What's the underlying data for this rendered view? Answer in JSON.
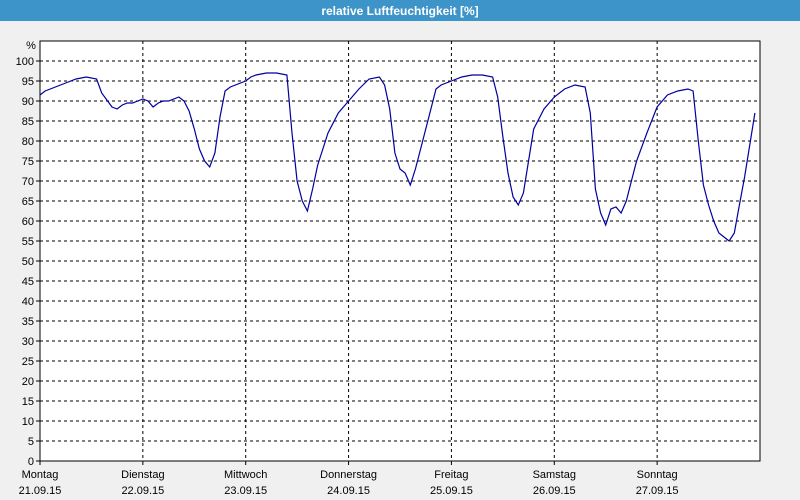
{
  "window": {
    "title": "relative Luftfeuchtigkeit [%]"
  },
  "chart_data": {
    "type": "line",
    "title": "relative Luftfeuchtigkeit [%]",
    "ylabel": "%",
    "ylim": [
      0,
      105
    ],
    "yticks": [
      0,
      5,
      10,
      15,
      20,
      25,
      30,
      35,
      40,
      45,
      50,
      55,
      60,
      65,
      70,
      75,
      80,
      85,
      90,
      95,
      100
    ],
    "grid": true,
    "xlim": [
      0,
      7
    ],
    "xticks": [
      {
        "x": 0,
        "day": "Montag",
        "date": "21.09.15"
      },
      {
        "x": 1,
        "day": "Dienstag",
        "date": "22.09.15"
      },
      {
        "x": 2,
        "day": "Mittwoch",
        "date": "23.09.15"
      },
      {
        "x": 3,
        "day": "Donnerstag",
        "date": "24.09.15"
      },
      {
        "x": 4,
        "day": "Freitag",
        "date": "25.09.15"
      },
      {
        "x": 5,
        "day": "Samstag",
        "date": "26.09.15"
      },
      {
        "x": 6,
        "day": "Sonntag",
        "date": "27.09.15"
      }
    ],
    "series_color": "#0000a0",
    "series": [
      {
        "x": [
          0,
          0.05,
          0.15,
          0.25,
          0.35,
          0.45,
          0.55,
          0.6,
          0.7,
          0.75,
          0.8,
          0.85,
          0.9,
          1.0,
          1.05,
          1.1,
          1.15,
          1.2,
          1.25,
          1.35,
          1.4,
          1.45,
          1.5,
          1.55,
          1.6,
          1.65,
          1.7,
          1.75,
          1.8,
          1.85,
          2.0,
          2.05,
          2.1,
          2.2,
          2.3,
          2.4,
          2.45,
          2.5,
          2.55,
          2.6,
          2.65,
          2.7,
          2.8,
          2.9,
          3.0,
          3.1,
          3.2,
          3.3,
          3.35,
          3.4,
          3.45,
          3.5,
          3.55,
          3.6,
          3.65,
          3.7,
          3.8,
          3.85,
          3.9,
          4.0,
          4.1,
          4.2,
          4.3,
          4.4,
          4.45,
          4.5,
          4.55,
          4.6,
          4.65,
          4.7,
          4.8,
          4.9,
          5.0,
          5.1,
          5.2,
          5.3,
          5.35,
          5.4,
          5.45,
          5.5,
          5.55,
          5.6,
          5.65,
          5.7,
          5.75,
          5.8,
          5.9,
          6.0,
          6.1,
          6.2,
          6.3,
          6.35,
          6.4,
          6.45,
          6.5,
          6.55,
          6.6,
          6.65,
          6.7,
          6.75,
          6.8,
          6.85,
          6.95
        ],
        "values": [
          91.5,
          92.5,
          93.5,
          94.5,
          95.5,
          96,
          95.5,
          92,
          88.5,
          88,
          89,
          89.5,
          89.5,
          90.5,
          90,
          88.5,
          89.5,
          90,
          90,
          91,
          90,
          87.5,
          83,
          78,
          75,
          73.5,
          77,
          86,
          92.5,
          93.5,
          95,
          96,
          96.5,
          97,
          97,
          96.5,
          82,
          70,
          65,
          62.5,
          68,
          74,
          82,
          87,
          90,
          93,
          95.5,
          96,
          94,
          88,
          77,
          73,
          72,
          69,
          73,
          78,
          88,
          93,
          94,
          95,
          96,
          96.5,
          96.5,
          96,
          91,
          81,
          72,
          66,
          64,
          67,
          83,
          88,
          91,
          93,
          94,
          93.5,
          87,
          68,
          62,
          59,
          63,
          63.5,
          62,
          65,
          70,
          75,
          82,
          88.5,
          91.5,
          92.5,
          93,
          92.5,
          80,
          69,
          64,
          60,
          57,
          56,
          55,
          57,
          64,
          71,
          87
        ]
      }
    ]
  }
}
